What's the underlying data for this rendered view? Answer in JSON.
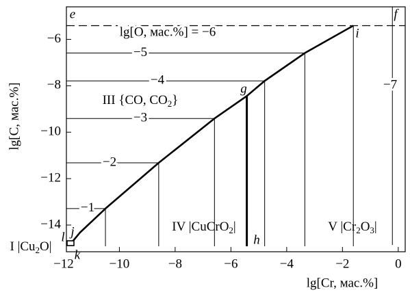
{
  "chart_data": {
    "type": "line",
    "x_label": "lg[Cr, мас.%]",
    "y_label": "lg[C, мас.%]",
    "xlim": [
      -11.9,
      0.25
    ],
    "ylim": [
      -15.15,
      -4.6
    ],
    "xticks": [
      {
        "value": -12,
        "label": "−12"
      },
      {
        "value": -10,
        "label": "−10"
      },
      {
        "value": -8,
        "label": "−8"
      },
      {
        "value": -6,
        "label": "−6"
      },
      {
        "value": -4,
        "label": "−4"
      },
      {
        "value": -2,
        "label": "−2"
      },
      {
        "value": 0,
        "label": "0"
      }
    ],
    "yticks": [
      {
        "value": -6,
        "label": "−6"
      },
      {
        "value": -8,
        "label": "−8"
      },
      {
        "value": -10,
        "label": "−10"
      },
      {
        "value": -12,
        "label": "−12"
      },
      {
        "value": -14,
        "label": "−14"
      }
    ],
    "series": [
      {
        "color": "#000000",
        "x": [
          -11.66,
          -11.41,
          -10.5,
          -8.59,
          -6.59,
          -5.43,
          -4.79,
          -3.35,
          -1.61
        ],
        "values": [
          -14.68,
          -14.32,
          -13.29,
          -11.32,
          -9.41,
          -8.44,
          -7.79,
          -6.59,
          -5.41
        ]
      }
    ],
    "dashed_line_y": -5.41,
    "gh_line_x": -5.43,
    "gh_line_top": -8.44,
    "f_line_x": -0.21,
    "isolines": [
      {
        "label": "−1",
        "x": -10.5,
        "y": -13.29
      },
      {
        "label": "−2",
        "x": -8.59,
        "y": -11.32
      },
      {
        "label": "−3",
        "x": -6.59,
        "y": -9.41
      },
      {
        "label": "−4",
        "x": -4.79,
        "y": -7.79
      },
      {
        "label": "−5",
        "x": -3.35,
        "y": -6.59
      },
      {
        "label": "−7",
        "x": -1.61,
        "y": -5.41
      }
    ],
    "o_label": "lg[O, мас.%] = −6",
    "regions": [
      {
        "parts": [
          "III {CO, CO",
          "2",
          "}"
        ]
      },
      {
        "parts": [
          "IV |CuCrO",
          "2",
          "|"
        ]
      },
      {
        "parts": [
          "V |Cr",
          "2",
          "O",
          "3",
          "|"
        ]
      },
      {
        "parts": [
          "I |Cu",
          "2",
          "O|"
        ]
      }
    ],
    "point_labels": [
      "e",
      "f",
      "g",
      "h",
      "i",
      "j",
      "k",
      "l"
    ]
  }
}
